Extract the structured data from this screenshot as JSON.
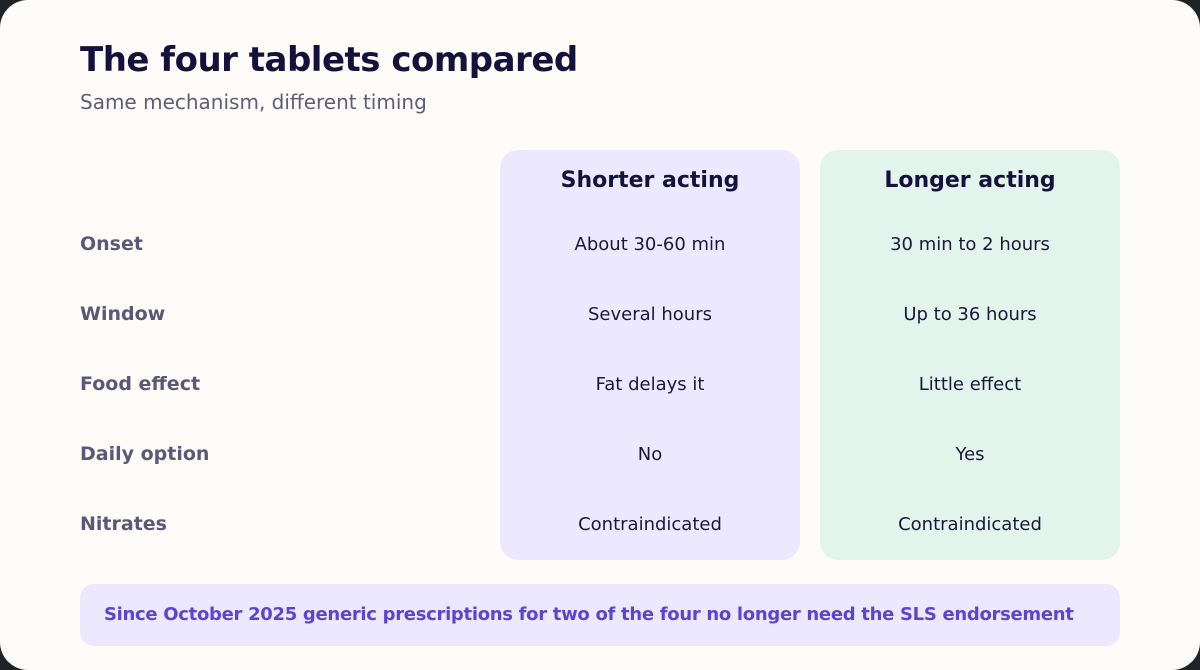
{
  "header": {
    "title": "The four tablets compared",
    "subtitle": "Same mechanism, different timing"
  },
  "columns": [
    {
      "label": "Shorter acting"
    },
    {
      "label": "Longer acting"
    }
  ],
  "rows": [
    {
      "label": "Onset",
      "short": "About 30-60 min",
      "long": "30 min to 2 hours"
    },
    {
      "label": "Window",
      "short": "Several hours",
      "long": "Up to 36 hours"
    },
    {
      "label": "Food effect",
      "short": "Fat delays it",
      "long": "Little effect"
    },
    {
      "label": "Daily option",
      "short": "No",
      "long": "Yes"
    },
    {
      "label": "Nitrates",
      "short": "Contraindicated",
      "long": "Contraindicated"
    }
  ],
  "footer": {
    "note": "Since October 2025 generic prescriptions for two of the four no longer need the SLS endorsement"
  },
  "colors": {
    "background": "#fefcf8",
    "short_panel": "#ece9fe",
    "long_panel": "#e2f4ec",
    "accent": "#5b44cf",
    "heading": "#14123a"
  }
}
